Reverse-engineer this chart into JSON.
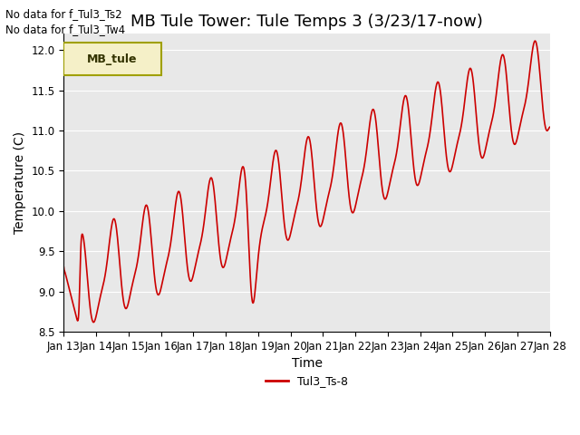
{
  "title": "MB Tule Tower: Tule Temps 3 (3/23/17-now)",
  "xlabel": "Time",
  "ylabel": "Temperature (C)",
  "ylim": [
    8.5,
    12.2
  ],
  "xlim": [
    0,
    15
  ],
  "x_tick_labels": [
    "Jan 13",
    "Jan 14",
    "Jan 15",
    "Jan 16",
    "Jan 17",
    "Jan 18",
    "Jan 19",
    "Jan 20",
    "Jan 21",
    "Jan 22",
    "Jan 23",
    "Jan 24",
    "Jan 25",
    "Jan 26",
    "Jan 27",
    "Jan 28"
  ],
  "line_color": "#cc0000",
  "line_label": "Tul3_Ts-8",
  "bg_color": "#e8e8e8",
  "legend_label": "MB_tule",
  "legend_bg": "#f5f0c8",
  "legend_border": "#a0a000",
  "no_data_text_1": "No data for f_Tul3_Ts2",
  "no_data_text_2": "No data for f_Tul3_Tw4",
  "title_fontsize": 13,
  "axis_fontsize": 10,
  "tick_fontsize": 8.5
}
